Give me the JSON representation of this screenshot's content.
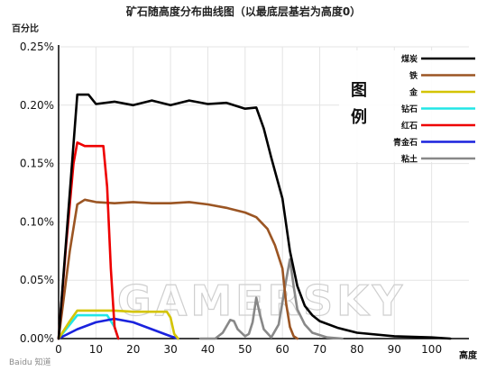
{
  "chart_data": {
    "type": "line",
    "title": "矿石随高度分布曲线图（以最底层基岩为高度0）",
    "ylabel": "百分比",
    "xlabel": "高度",
    "xlim": [
      0,
      110
    ],
    "ylim": [
      0,
      0.25
    ],
    "x_ticks": [
      0,
      10,
      20,
      30,
      40,
      50,
      60,
      70,
      80,
      90,
      100
    ],
    "y_ticks": [
      0,
      0.05,
      0.1,
      0.15,
      0.2,
      0.25
    ],
    "y_tick_labels": [
      "0.00%",
      "0.05%",
      "0.10%",
      "0.15%",
      "0.20%",
      "0.25%"
    ],
    "grid": true,
    "legend_title": "图例",
    "legend_position": "top-right",
    "series": [
      {
        "name": "煤炭",
        "color": "#000000",
        "points": [
          [
            0,
            0.0
          ],
          [
            3,
            0.125
          ],
          [
            5,
            0.209
          ],
          [
            8,
            0.209
          ],
          [
            10,
            0.201
          ],
          [
            15,
            0.203
          ],
          [
            20,
            0.2
          ],
          [
            25,
            0.204
          ],
          [
            30,
            0.2
          ],
          [
            35,
            0.204
          ],
          [
            40,
            0.201
          ],
          [
            45,
            0.202
          ],
          [
            50,
            0.197
          ],
          [
            53,
            0.198
          ],
          [
            55,
            0.18
          ],
          [
            57,
            0.155
          ],
          [
            60,
            0.12
          ],
          [
            62,
            0.075
          ],
          [
            64,
            0.045
          ],
          [
            66,
            0.028
          ],
          [
            68,
            0.02
          ],
          [
            70,
            0.015
          ],
          [
            75,
            0.009
          ],
          [
            80,
            0.005
          ],
          [
            90,
            0.002
          ],
          [
            100,
            0.001
          ],
          [
            105,
            0.0
          ]
        ]
      },
      {
        "name": "铁",
        "color": "#9b5523",
        "points": [
          [
            0,
            0.0
          ],
          [
            3,
            0.075
          ],
          [
            5,
            0.115
          ],
          [
            7,
            0.119
          ],
          [
            10,
            0.117
          ],
          [
            15,
            0.116
          ],
          [
            20,
            0.117
          ],
          [
            25,
            0.116
          ],
          [
            30,
            0.116
          ],
          [
            35,
            0.117
          ],
          [
            40,
            0.115
          ],
          [
            45,
            0.112
          ],
          [
            50,
            0.108
          ],
          [
            53,
            0.104
          ],
          [
            56,
            0.094
          ],
          [
            58,
            0.08
          ],
          [
            60,
            0.06
          ],
          [
            61,
            0.03
          ],
          [
            62,
            0.01
          ],
          [
            63,
            0.002
          ],
          [
            64,
            0.0
          ]
        ]
      },
      {
        "name": "金",
        "color": "#d4c400",
        "points": [
          [
            0,
            0.0
          ],
          [
            3,
            0.015
          ],
          [
            5,
            0.024
          ],
          [
            10,
            0.024
          ],
          [
            15,
            0.024
          ],
          [
            20,
            0.023
          ],
          [
            25,
            0.023
          ],
          [
            29,
            0.023
          ],
          [
            30,
            0.018
          ],
          [
            31,
            0.004
          ],
          [
            32,
            0.0
          ]
        ]
      },
      {
        "name": "钻石",
        "color": "#22e6e6",
        "points": [
          [
            0,
            0.0
          ],
          [
            3,
            0.012
          ],
          [
            5,
            0.02
          ],
          [
            10,
            0.02
          ],
          [
            13,
            0.02
          ],
          [
            15,
            0.01
          ],
          [
            16,
            0.0
          ]
        ]
      },
      {
        "name": "红石",
        "color": "#ee0000",
        "points": [
          [
            0,
            0.0
          ],
          [
            2,
            0.08
          ],
          [
            4,
            0.15
          ],
          [
            5,
            0.168
          ],
          [
            7,
            0.165
          ],
          [
            10,
            0.165
          ],
          [
            12,
            0.165
          ],
          [
            13,
            0.13
          ],
          [
            14,
            0.06
          ],
          [
            15,
            0.01
          ],
          [
            16,
            0.0
          ]
        ]
      },
      {
        "name": "青金石",
        "color": "#1a22dd",
        "points": [
          [
            0,
            0.0
          ],
          [
            5,
            0.008
          ],
          [
            10,
            0.014
          ],
          [
            15,
            0.017
          ],
          [
            20,
            0.014
          ],
          [
            25,
            0.008
          ],
          [
            30,
            0.002
          ],
          [
            32,
            0.0
          ]
        ]
      },
      {
        "name": "粘土",
        "color": "#888888",
        "points": [
          [
            38,
            0.0
          ],
          [
            42,
            0.0
          ],
          [
            44,
            0.005
          ],
          [
            46,
            0.016
          ],
          [
            47,
            0.015
          ],
          [
            48,
            0.008
          ],
          [
            50,
            0.002
          ],
          [
            51,
            0.004
          ],
          [
            52,
            0.014
          ],
          [
            53,
            0.035
          ],
          [
            54,
            0.02
          ],
          [
            55,
            0.008
          ],
          [
            57,
            0.001
          ],
          [
            59,
            0.012
          ],
          [
            61,
            0.05
          ],
          [
            62,
            0.068
          ],
          [
            63,
            0.045
          ],
          [
            64,
            0.025
          ],
          [
            66,
            0.012
          ],
          [
            68,
            0.005
          ],
          [
            72,
            0.001
          ],
          [
            76,
            0.0
          ]
        ]
      }
    ]
  },
  "watermark": "GAMERSKY",
  "credit": "Baidu 知道"
}
